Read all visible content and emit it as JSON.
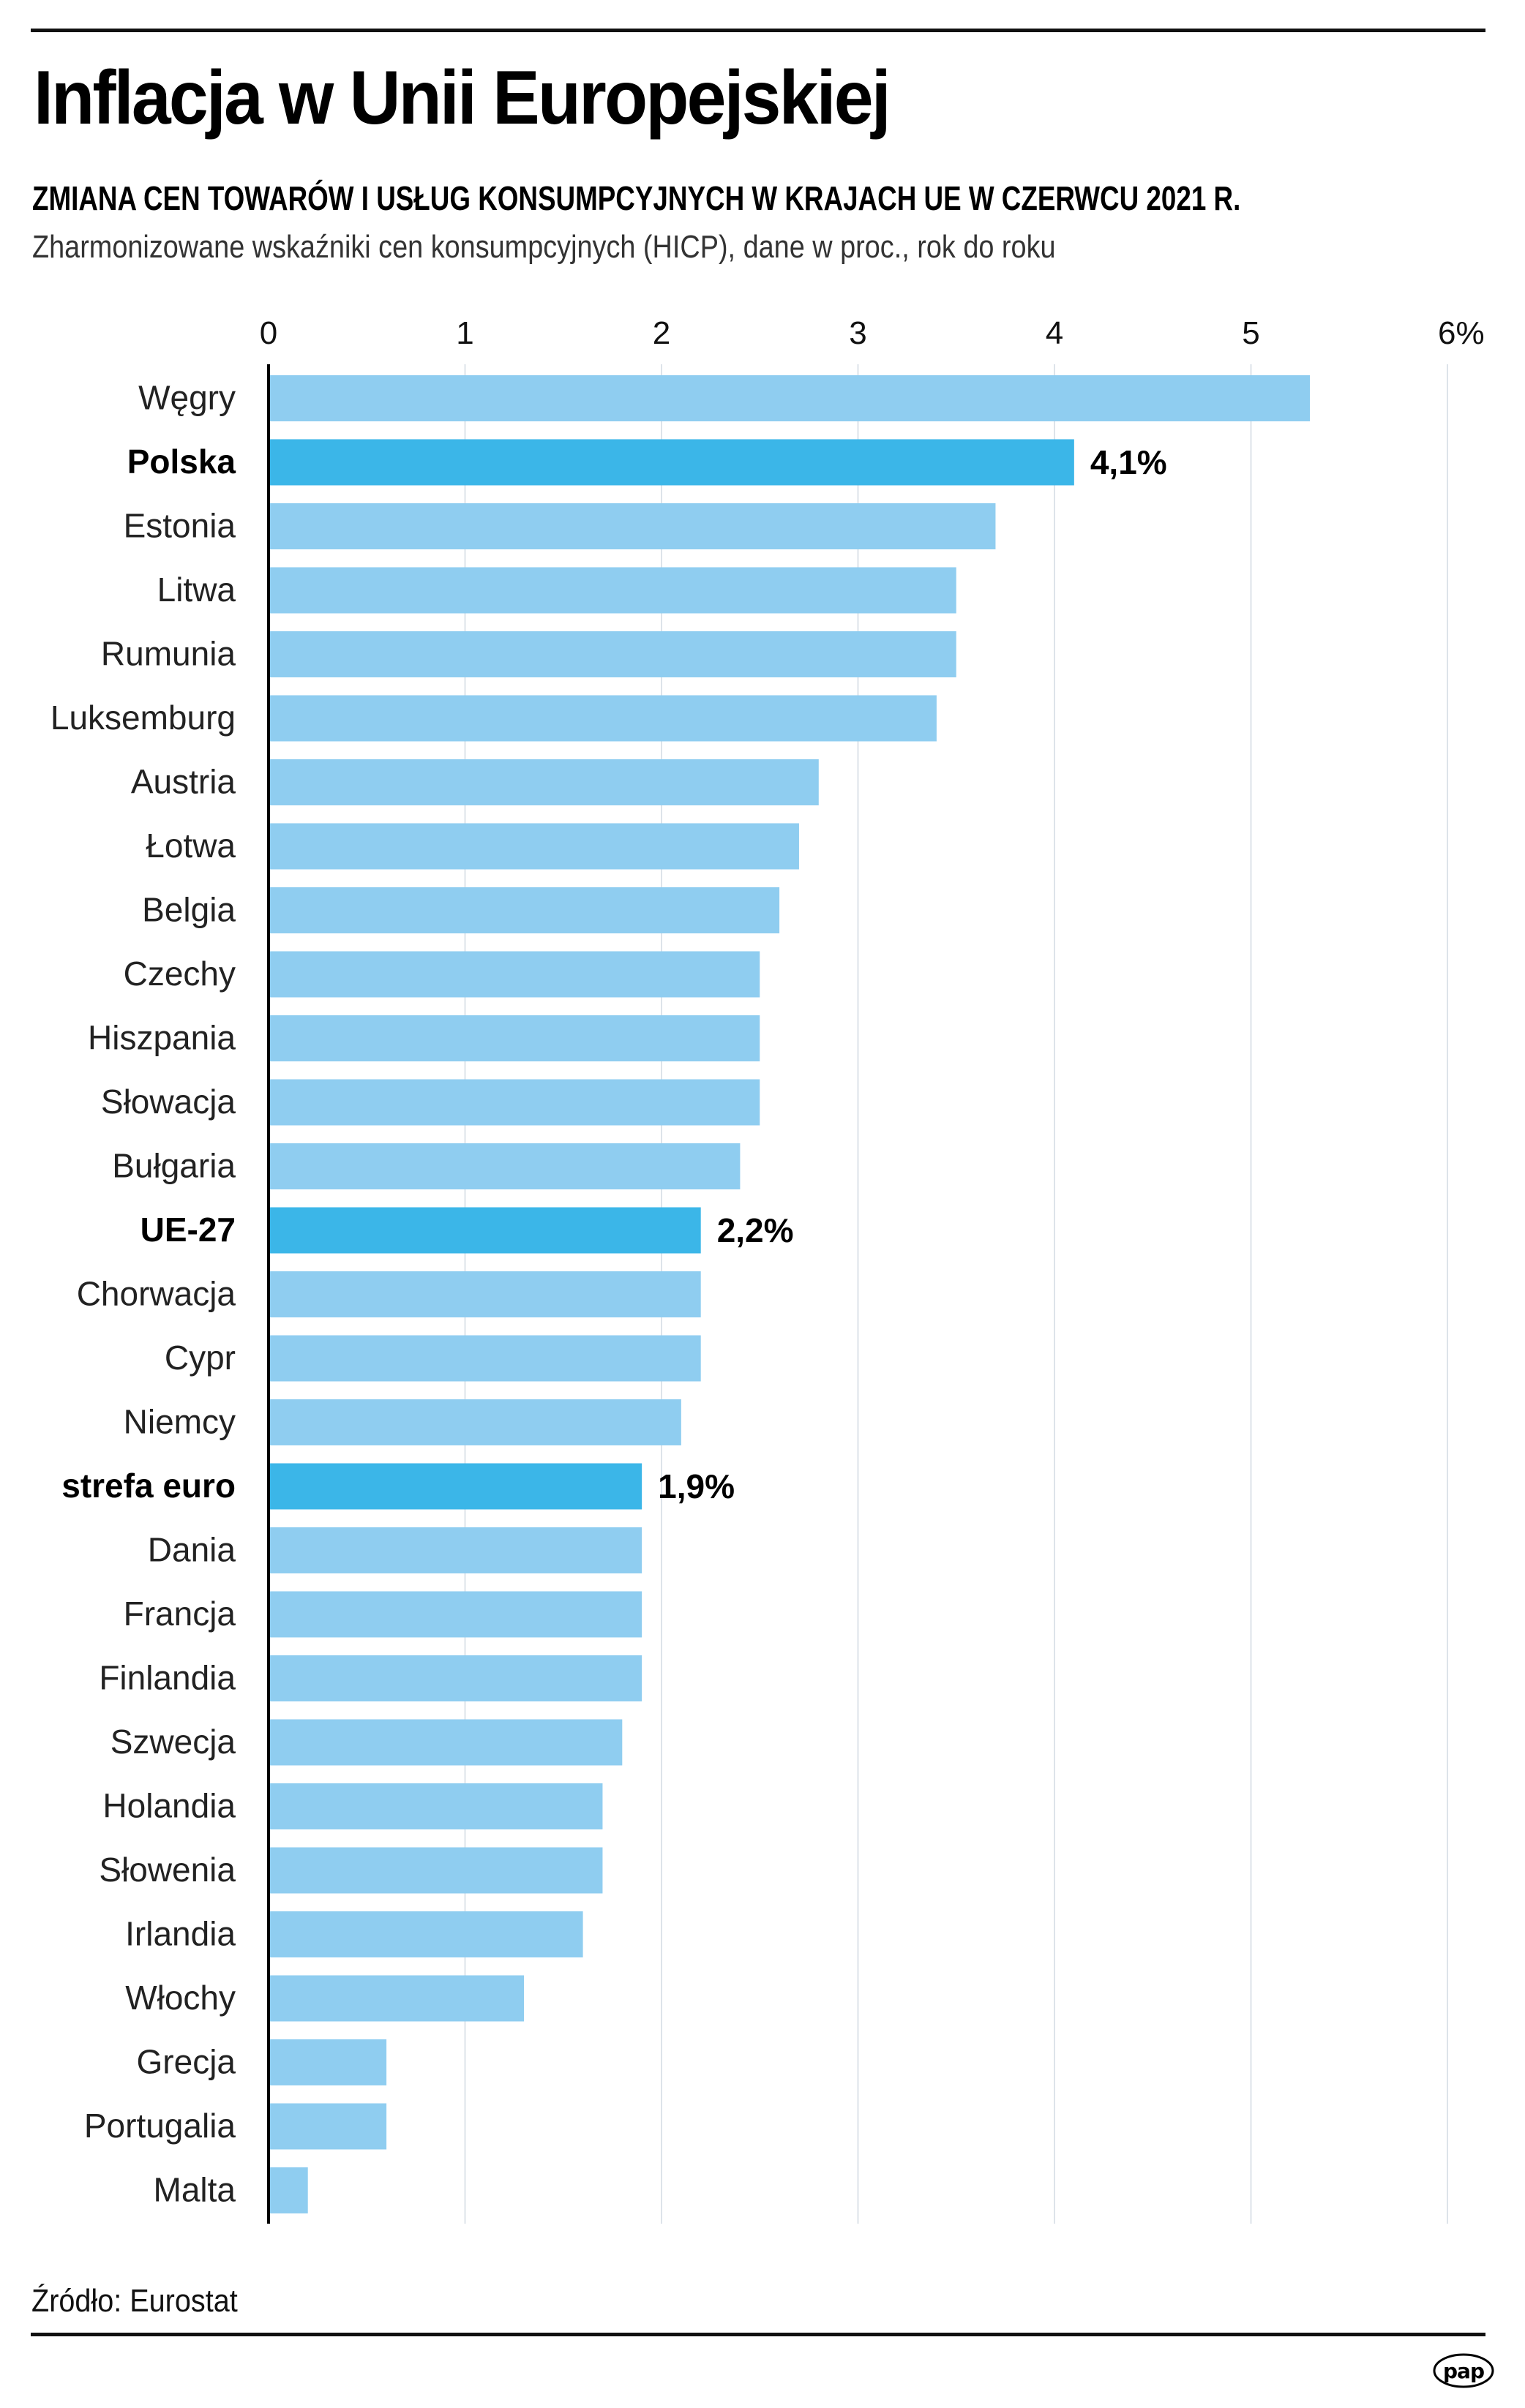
{
  "header": {
    "title": "Inflacja w Unii Europejskiej",
    "subtitle": "ZMIANA CEN TOWARÓW I USŁUG KONSUMPCYJNYCH W KRAJACH UE W CZERWCU 2021 R.",
    "description": "Zharmonizowane wskaźniki cen konsumpcyjnych (HICP), dane w proc., rok do roku"
  },
  "footer": {
    "source": "Źródło: Eurostat",
    "logo": "pap"
  },
  "colors": {
    "bar": "#8fcdf0",
    "bar_highlight": "#3bb6e8",
    "grid": "#dde3ea",
    "axis": "#000000",
    "text": "#000000"
  },
  "chart_data": {
    "type": "bar",
    "orientation": "horizontal",
    "title": "Inflacja w Unii Europejskiej",
    "subtitle": "ZMIANA CEN TOWARÓW I USŁUG KONSUMPCYJNYCH W KRAJACH UE W CZERWCU 2021 R.",
    "xlabel": "",
    "ylabel": "",
    "unit": "%",
    "xlim": [
      0,
      6
    ],
    "ticks": [
      0,
      1,
      2,
      3,
      4,
      5,
      6
    ],
    "tick_labels": [
      "0",
      "1",
      "2",
      "3",
      "4",
      "5",
      "6%"
    ],
    "axis_position": "top",
    "grid": true,
    "categories": [
      "Węgry",
      "Polska",
      "Estonia",
      "Litwa",
      "Rumunia",
      "Luksemburg",
      "Austria",
      "Łotwa",
      "Belgia",
      "Czechy",
      "Hiszpania",
      "Słowacja",
      "Bułgaria",
      "UE-27",
      "Chorwacja",
      "Cypr",
      "Niemcy",
      "strefa euro",
      "Dania",
      "Francja",
      "Finlandia",
      "Szwecja",
      "Holandia",
      "Słowenia",
      "Irlandia",
      "Włochy",
      "Grecja",
      "Portugalia",
      "Malta"
    ],
    "values": [
      5.3,
      4.1,
      3.7,
      3.5,
      3.5,
      3.4,
      2.8,
      2.7,
      2.6,
      2.5,
      2.5,
      2.5,
      2.4,
      2.2,
      2.2,
      2.2,
      2.1,
      1.9,
      1.9,
      1.9,
      1.9,
      1.8,
      1.7,
      1.7,
      1.6,
      1.3,
      0.6,
      0.6,
      0.2
    ],
    "highlighted": [
      "Polska",
      "UE-27",
      "strefa euro"
    ],
    "data_labels": {
      "Polska": "4,1%",
      "UE-27": "2,2%",
      "strefa euro": "1,9%"
    }
  }
}
